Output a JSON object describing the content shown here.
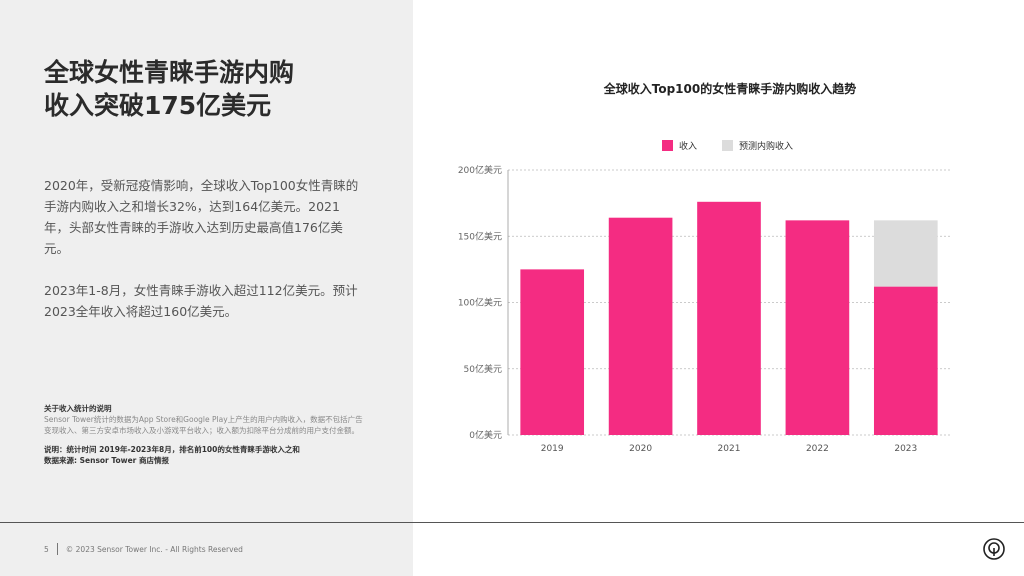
{
  "headline": [
    "全球女性青睐手游内购",
    "收入突破175亿美元"
  ],
  "body": [
    "2020年，受新冠疫情影响，全球收入Top100女性青睐的手游内购收入之和增长32%，达到164亿美元。2021年，头部女性青睐的手游收入达到历史最高值176亿美元。",
    "2023年1-8月，女性青睐手游收入超过112亿美元。预计2023全年收入将超过160亿美元。"
  ],
  "notes": {
    "title": "关于收入统计的说明",
    "body": "Sensor Tower统计的数据为App Store和Google Play上产生的用户内购收入，数据不包括广告变现收入、第三方安卓市场收入及小游戏平台收入；收入额为扣除平台分成前的用户支付金额。",
    "method": "说明：统计时间 2019年-2023年8月，排名前100的女性青睐手游收入之和",
    "source": "数据来源: Sensor Tower 商店情报"
  },
  "footer": {
    "page": "5",
    "copyright": "© 2023 Sensor Tower Inc. - All Rights Reserved"
  },
  "colors": {
    "primary": "#f42c82",
    "forecast": "#dcdcdc"
  },
  "chart_data": {
    "type": "bar",
    "stacked": true,
    "title": "全球收入Top100的女性青睐手游内购收入趋势",
    "categories": [
      "2019",
      "2020",
      "2021",
      "2022",
      "2023"
    ],
    "series": [
      {
        "name": "收入",
        "color": "#f42c82",
        "values": [
          125,
          164,
          176,
          162,
          112
        ]
      },
      {
        "name": "预测内购收入",
        "color": "#dcdcdc",
        "values": [
          0,
          0,
          0,
          0,
          50
        ]
      }
    ],
    "ylim": [
      0,
      200
    ],
    "yticks": [
      "0亿美元",
      "50亿美元",
      "100亿美元",
      "150亿美元",
      "200亿美元"
    ],
    "ytick_values": [
      0,
      50,
      100,
      150,
      200
    ],
    "grid": true,
    "legend_position": "top-center"
  }
}
